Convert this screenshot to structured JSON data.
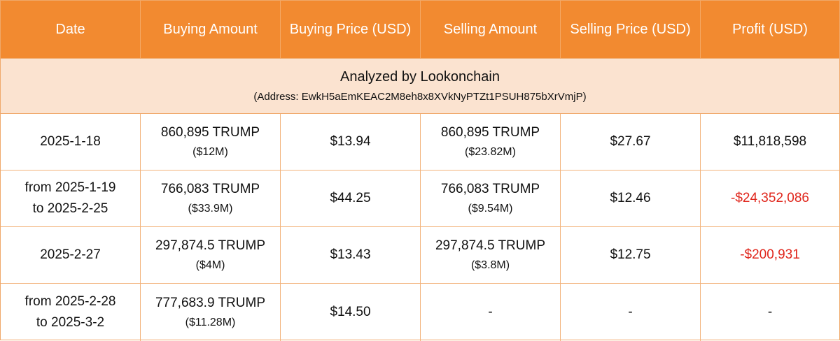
{
  "columns": [
    "Date",
    "Buying Amount",
    "Buying Price (USD)",
    "Selling Amount",
    "Selling Price (USD)",
    "Profit (USD)"
  ],
  "banner": {
    "title": "Analyzed by Lookonchain",
    "address": "(Address: EwkH5aEmKEAC2M8eh8x8XVkNyPTZt1PSUH875bXrVmjP)"
  },
  "rows": [
    {
      "date_line1": "2025-1-18",
      "date_line2": "",
      "buy_amount": "860,895 TRUMP",
      "buy_usd": "($12M)",
      "buy_price": "$13.94",
      "sell_amount": "860,895 TRUMP",
      "sell_usd": "($23.82M)",
      "sell_price": "$27.67",
      "profit": "$11,818,598",
      "profit_color": "#111111"
    },
    {
      "date_line1": "from 2025-1-19",
      "date_line2": "to 2025-2-25",
      "buy_amount": "766,083 TRUMP",
      "buy_usd": "($33.9M)",
      "buy_price": "$44.25",
      "sell_amount": "766,083 TRUMP",
      "sell_usd": "($9.54M)",
      "sell_price": "$12.46",
      "profit": "-$24,352,086",
      "profit_color": "#e0261c"
    },
    {
      "date_line1": "2025-2-27",
      "date_line2": "",
      "buy_amount": "297,874.5 TRUMP",
      "buy_usd": "($4M)",
      "buy_price": "$13.43",
      "sell_amount": "297,874.5 TRUMP",
      "sell_usd": "($3.8M)",
      "sell_price": "$12.75",
      "profit": "-$200,931",
      "profit_color": "#e0261c"
    },
    {
      "date_line1": "from 2025-2-28",
      "date_line2": "to 2025-3-2",
      "buy_amount": "777,683.9 TRUMP",
      "buy_usd": "($11.28M)",
      "buy_price": "$14.50",
      "sell_amount": "-",
      "sell_usd": "",
      "sell_price": "-",
      "profit": "-",
      "profit_color": "#111111"
    }
  ],
  "colors": {
    "header_bg": "#f28a30",
    "banner_bg": "#fbe3d0",
    "border": "#f2b27a",
    "loss_text": "#e0261c"
  }
}
